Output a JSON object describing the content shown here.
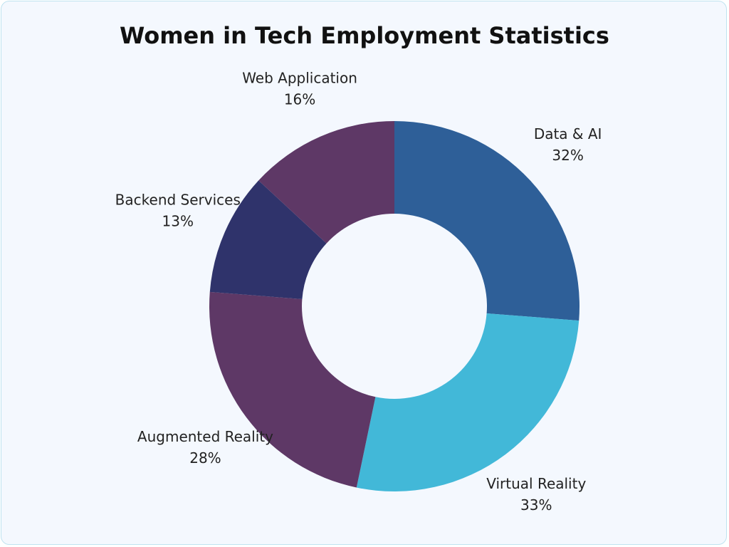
{
  "chart_data": {
    "type": "donut",
    "title": "Women in Tech Employment Statistics",
    "categories": [
      "Data & AI",
      "Virtual Reality",
      "Augmented Reality",
      "Backend Services",
      "Web Application"
    ],
    "values": [
      32,
      33,
      28,
      13,
      16
    ],
    "value_labels": [
      "32%",
      "33%",
      "28%",
      "13%",
      "16%"
    ],
    "colors": [
      "#2e5f98",
      "#42b8d8",
      "#5e3866",
      "#2f336b",
      "#5e3866"
    ]
  }
}
